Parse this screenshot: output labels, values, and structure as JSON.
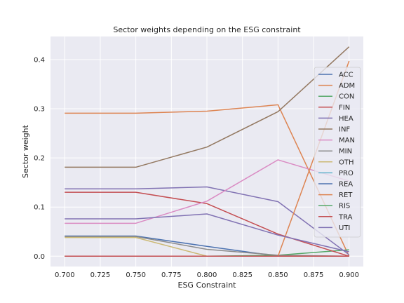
{
  "chart_data": {
    "type": "line",
    "title": "Sector weights depending on the ESG constraint",
    "xlabel": "ESG Constraint",
    "ylabel": "Sector weight",
    "x": [
      0.7,
      0.75,
      0.8,
      0.85,
      0.9
    ],
    "xlim": [
      0.69,
      0.91
    ],
    "ylim": [
      -0.021,
      0.447
    ],
    "xticks": [
      "0.700",
      "0.725",
      "0.750",
      "0.775",
      "0.800",
      "0.825",
      "0.850",
      "0.875",
      "0.900"
    ],
    "xtick_values": [
      0.7,
      0.725,
      0.75,
      0.775,
      0.8,
      0.825,
      0.85,
      0.875,
      0.9
    ],
    "yticks": [
      "0.0",
      "0.1",
      "0.2",
      "0.3",
      "0.4"
    ],
    "ytick_values": [
      0.0,
      0.1,
      0.2,
      0.3,
      0.4
    ],
    "grid": true,
    "legend_position": "right",
    "series": [
      {
        "name": "ACC",
        "color": "#4c72b0",
        "values": [
          0.041,
          0.041,
          0.02,
          0.0,
          0.0
        ]
      },
      {
        "name": "ADM",
        "color": "#dd8452",
        "values": [
          0.291,
          0.291,
          0.295,
          0.308,
          0.0
        ]
      },
      {
        "name": "CON",
        "color": "#55a868",
        "values": [
          0.0,
          0.0,
          0.0,
          0.002,
          0.013
        ]
      },
      {
        "name": "FIN",
        "color": "#c44e52",
        "values": [
          0.13,
          0.13,
          0.107,
          0.045,
          0.0
        ]
      },
      {
        "name": "HEA",
        "color": "#8172b3",
        "values": [
          0.137,
          0.137,
          0.141,
          0.111,
          0.003
        ]
      },
      {
        "name": "INF",
        "color": "#937860",
        "values": [
          0.181,
          0.181,
          0.222,
          0.294,
          0.426
        ]
      },
      {
        "name": "MAN",
        "color": "#da8bc3",
        "values": [
          0.067,
          0.067,
          0.112,
          0.196,
          0.153
        ]
      },
      {
        "name": "MIN",
        "color": "#8c8c8c",
        "values": [
          0.04,
          0.04,
          0.014,
          0.002,
          0.0
        ]
      },
      {
        "name": "OTH",
        "color": "#ccb974",
        "values": [
          0.038,
          0.038,
          0.0,
          0.0,
          0.0
        ]
      },
      {
        "name": "PRO",
        "color": "#64b5cd",
        "values": [
          0.0,
          0.0,
          0.0,
          0.0,
          0.0
        ]
      },
      {
        "name": "REA",
        "color": "#4c72b0",
        "values": [
          0.0,
          0.0,
          0.0,
          0.0,
          0.0
        ]
      },
      {
        "name": "RET",
        "color": "#dd8452",
        "values": [
          0.0,
          0.0,
          0.0,
          0.0,
          0.397
        ]
      },
      {
        "name": "RIS",
        "color": "#55a868",
        "values": [
          0.0,
          0.0,
          0.0,
          0.0,
          0.0
        ]
      },
      {
        "name": "TRA",
        "color": "#c44e52",
        "values": [
          0.0,
          0.0,
          0.0,
          0.0,
          0.0
        ]
      },
      {
        "name": "UTI",
        "color": "#8172b3",
        "values": [
          0.076,
          0.076,
          0.086,
          0.043,
          0.009
        ]
      }
    ]
  }
}
